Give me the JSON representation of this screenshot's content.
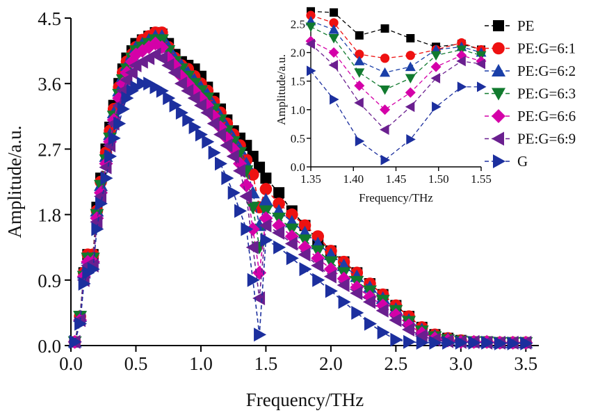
{
  "chart_data": [
    {
      "type": "line",
      "xlabel": "Frequency/THz",
      "ylabel": "Amplitude/a.u.",
      "xlim": [
        0.0,
        3.6
      ],
      "ylim": [
        0.0,
        4.5
      ],
      "xticks": [
        "0.0",
        "0.5",
        "1.0",
        "1.5",
        "2.0",
        "2.5",
        "3.0",
        "3.5"
      ],
      "yticks": [
        "0.0",
        "0.9",
        "1.8",
        "2.7",
        "3.6",
        "4.5"
      ],
      "grid": false,
      "legend": "top-right",
      "series": [
        {
          "name": "PE",
          "color": "#000000",
          "marker": "square",
          "x": [
            0.03,
            0.07,
            0.1,
            0.13,
            0.17,
            0.2,
            0.23,
            0.27,
            0.3,
            0.33,
            0.37,
            0.4,
            0.43,
            0.47,
            0.5,
            0.55,
            0.6,
            0.65,
            0.7,
            0.75,
            0.8,
            0.85,
            0.9,
            0.95,
            1.0,
            1.05,
            1.1,
            1.15,
            1.2,
            1.25,
            1.3,
            1.35,
            1.4,
            1.45,
            1.5,
            1.6,
            1.7,
            1.8,
            1.9,
            2.0,
            2.1,
            2.2,
            2.3,
            2.4,
            2.5,
            2.6,
            2.7,
            2.8,
            2.9,
            3.0,
            3.1,
            3.2,
            3.3,
            3.4,
            3.5
          ],
          "y": [
            0.05,
            0.4,
            1.0,
            1.25,
            1.25,
            1.9,
            2.3,
            2.7,
            3.0,
            3.3,
            3.6,
            3.8,
            3.95,
            4.05,
            4.15,
            4.2,
            4.25,
            4.3,
            4.28,
            4.15,
            4.0,
            3.9,
            3.85,
            3.8,
            3.7,
            3.55,
            3.4,
            3.25,
            3.1,
            2.95,
            2.85,
            2.75,
            2.6,
            2.45,
            2.3,
            2.1,
            1.85,
            1.65,
            1.45,
            1.3,
            1.15,
            1.0,
            0.85,
            0.7,
            0.55,
            0.4,
            0.25,
            0.15,
            0.1,
            0.07,
            0.05,
            0.05,
            0.04,
            0.04,
            0.04
          ]
        },
        {
          "name": "PE:G=6:1",
          "color": "#ee1111",
          "marker": "circle",
          "x": [
            0.03,
            0.07,
            0.1,
            0.13,
            0.17,
            0.2,
            0.23,
            0.27,
            0.3,
            0.33,
            0.37,
            0.4,
            0.43,
            0.47,
            0.5,
            0.55,
            0.6,
            0.65,
            0.7,
            0.75,
            0.8,
            0.85,
            0.9,
            0.95,
            1.0,
            1.05,
            1.1,
            1.15,
            1.2,
            1.25,
            1.3,
            1.35,
            1.4,
            1.45,
            1.5,
            1.6,
            1.7,
            1.8,
            1.9,
            2.0,
            2.1,
            2.2,
            2.3,
            2.4,
            2.5,
            2.6,
            2.7,
            2.8,
            2.9,
            3.0,
            3.1,
            3.2,
            3.3,
            3.4,
            3.5
          ],
          "y": [
            0.05,
            0.4,
            1.0,
            1.25,
            1.25,
            1.85,
            2.25,
            2.65,
            2.95,
            3.25,
            3.55,
            3.75,
            3.9,
            4.0,
            4.1,
            4.2,
            4.25,
            4.3,
            4.3,
            4.1,
            3.95,
            3.85,
            3.8,
            3.7,
            3.6,
            3.5,
            3.35,
            3.2,
            3.05,
            2.9,
            2.75,
            2.55,
            2.35,
            1.9,
            2.15,
            1.95,
            1.8,
            1.65,
            1.5,
            1.3,
            1.15,
            1.0,
            0.85,
            0.7,
            0.55,
            0.4,
            0.25,
            0.15,
            0.1,
            0.07,
            0.05,
            0.05,
            0.04,
            0.04,
            0.04
          ]
        },
        {
          "name": "PE:G=6:2",
          "color": "#1a3fa8",
          "marker": "triangle-up",
          "x": [
            0.03,
            0.07,
            0.1,
            0.13,
            0.17,
            0.2,
            0.23,
            0.27,
            0.3,
            0.33,
            0.37,
            0.4,
            0.43,
            0.47,
            0.5,
            0.55,
            0.6,
            0.65,
            0.7,
            0.75,
            0.8,
            0.85,
            0.9,
            0.95,
            1.0,
            1.05,
            1.1,
            1.15,
            1.2,
            1.25,
            1.3,
            1.35,
            1.4,
            1.45,
            1.5,
            1.6,
            1.7,
            1.8,
            1.9,
            2.0,
            2.1,
            2.2,
            2.3,
            2.4,
            2.5,
            2.6,
            2.7,
            2.8,
            2.9,
            3.0,
            3.1,
            3.2,
            3.3,
            3.4,
            3.5
          ],
          "y": [
            0.05,
            0.4,
            1.0,
            1.2,
            1.2,
            1.85,
            2.2,
            2.6,
            2.9,
            3.2,
            3.5,
            3.7,
            3.85,
            4.0,
            4.1,
            4.15,
            4.2,
            4.25,
            4.25,
            4.1,
            3.95,
            3.85,
            3.75,
            3.65,
            3.55,
            3.45,
            3.3,
            3.15,
            3.0,
            2.85,
            2.7,
            2.5,
            2.1,
            1.65,
            2.0,
            1.85,
            1.7,
            1.55,
            1.4,
            1.25,
            1.1,
            0.95,
            0.8,
            0.65,
            0.5,
            0.35,
            0.22,
            0.13,
            0.09,
            0.06,
            0.05,
            0.05,
            0.04,
            0.04,
            0.04
          ]
        },
        {
          "name": "PE:G=6:3",
          "color": "#117a2e",
          "marker": "triangle-down",
          "x": [
            0.03,
            0.07,
            0.1,
            0.13,
            0.17,
            0.2,
            0.23,
            0.27,
            0.3,
            0.33,
            0.37,
            0.4,
            0.43,
            0.47,
            0.5,
            0.55,
            0.6,
            0.65,
            0.7,
            0.75,
            0.8,
            0.85,
            0.9,
            0.95,
            1.0,
            1.05,
            1.1,
            1.15,
            1.2,
            1.25,
            1.3,
            1.35,
            1.4,
            1.45,
            1.5,
            1.6,
            1.7,
            1.8,
            1.9,
            2.0,
            2.1,
            2.2,
            2.3,
            2.4,
            2.5,
            2.6,
            2.7,
            2.8,
            2.9,
            3.0,
            3.1,
            3.2,
            3.3,
            3.4,
            3.5
          ],
          "y": [
            0.05,
            0.4,
            0.95,
            1.2,
            1.2,
            1.8,
            2.2,
            2.55,
            2.85,
            3.15,
            3.45,
            3.65,
            3.8,
            3.95,
            4.05,
            4.1,
            4.15,
            4.2,
            4.2,
            4.05,
            3.9,
            3.8,
            3.7,
            3.6,
            3.5,
            3.4,
            3.25,
            3.1,
            2.95,
            2.8,
            2.65,
            2.4,
            1.9,
            1.35,
            1.85,
            1.75,
            1.6,
            1.45,
            1.3,
            1.15,
            1.0,
            0.88,
            0.75,
            0.62,
            0.48,
            0.33,
            0.2,
            0.12,
            0.08,
            0.06,
            0.05,
            0.05,
            0.04,
            0.04,
            0.04
          ]
        },
        {
          "name": "PE:G=6:6",
          "color": "#d400a8",
          "marker": "diamond",
          "x": [
            0.03,
            0.07,
            0.1,
            0.13,
            0.17,
            0.2,
            0.23,
            0.27,
            0.3,
            0.33,
            0.37,
            0.4,
            0.43,
            0.47,
            0.5,
            0.55,
            0.6,
            0.65,
            0.7,
            0.75,
            0.8,
            0.85,
            0.9,
            0.95,
            1.0,
            1.05,
            1.1,
            1.15,
            1.2,
            1.25,
            1.3,
            1.35,
            1.4,
            1.45,
            1.5,
            1.6,
            1.7,
            1.8,
            1.9,
            2.0,
            2.1,
            2.2,
            2.3,
            2.4,
            2.5,
            2.6,
            2.7,
            2.8,
            2.9,
            3.0,
            3.1,
            3.2,
            3.3,
            3.4,
            3.5
          ],
          "y": [
            0.05,
            0.35,
            0.95,
            1.15,
            1.15,
            1.75,
            2.1,
            2.5,
            2.8,
            3.1,
            3.4,
            3.6,
            3.75,
            3.9,
            4.0,
            4.05,
            4.1,
            4.15,
            4.1,
            3.95,
            3.85,
            3.7,
            3.6,
            3.5,
            3.4,
            3.3,
            3.15,
            3.0,
            2.85,
            2.7,
            2.5,
            2.2,
            1.6,
            1.0,
            1.75,
            1.65,
            1.5,
            1.35,
            1.2,
            1.05,
            0.92,
            0.8,
            0.67,
            0.55,
            0.42,
            0.28,
            0.17,
            0.1,
            0.07,
            0.05,
            0.05,
            0.05,
            0.04,
            0.04,
            0.04
          ]
        },
        {
          "name": "PE:G=6:9",
          "color": "#6a1f8f",
          "marker": "triangle-left",
          "x": [
            0.03,
            0.07,
            0.1,
            0.13,
            0.17,
            0.2,
            0.23,
            0.27,
            0.3,
            0.33,
            0.37,
            0.4,
            0.43,
            0.47,
            0.5,
            0.55,
            0.6,
            0.65,
            0.7,
            0.75,
            0.8,
            0.85,
            0.9,
            0.95,
            1.0,
            1.05,
            1.1,
            1.15,
            1.2,
            1.25,
            1.3,
            1.35,
            1.4,
            1.45,
            1.5,
            1.6,
            1.7,
            1.8,
            1.9,
            2.0,
            2.1,
            2.2,
            2.3,
            2.4,
            2.5,
            2.6,
            2.7,
            2.8,
            2.9,
            3.0,
            3.1,
            3.2,
            3.3,
            3.4,
            3.5
          ],
          "y": [
            0.05,
            0.35,
            0.9,
            1.1,
            1.1,
            1.7,
            2.05,
            2.45,
            2.75,
            3.05,
            3.3,
            3.5,
            3.65,
            3.75,
            3.85,
            3.9,
            3.95,
            4.0,
            3.95,
            3.85,
            3.75,
            3.6,
            3.5,
            3.4,
            3.3,
            3.2,
            3.05,
            2.9,
            2.75,
            2.6,
            2.4,
            2.05,
            1.35,
            0.65,
            1.65,
            1.55,
            1.4,
            1.25,
            1.1,
            0.95,
            0.83,
            0.72,
            0.6,
            0.48,
            0.35,
            0.22,
            0.13,
            0.08,
            0.06,
            0.05,
            0.05,
            0.04,
            0.04,
            0.04,
            0.04
          ]
        },
        {
          "name": "G",
          "color": "#1c2f9e",
          "marker": "triangle-right",
          "x": [
            0.03,
            0.07,
            0.1,
            0.13,
            0.17,
            0.2,
            0.23,
            0.27,
            0.3,
            0.33,
            0.37,
            0.4,
            0.43,
            0.47,
            0.5,
            0.55,
            0.6,
            0.65,
            0.7,
            0.75,
            0.8,
            0.85,
            0.9,
            0.95,
            1.0,
            1.05,
            1.1,
            1.15,
            1.2,
            1.25,
            1.3,
            1.35,
            1.4,
            1.45,
            1.5,
            1.6,
            1.7,
            1.8,
            1.9,
            2.0,
            2.1,
            2.2,
            2.3,
            2.4,
            2.5,
            2.6,
            2.7,
            2.8,
            2.9,
            3.0,
            3.1,
            3.2,
            3.3,
            3.4,
            3.5
          ],
          "y": [
            0.05,
            0.3,
            0.85,
            1.0,
            1.05,
            1.6,
            1.95,
            2.3,
            2.6,
            2.85,
            3.05,
            3.25,
            3.4,
            3.5,
            3.55,
            3.6,
            3.6,
            3.55,
            3.5,
            3.4,
            3.3,
            3.2,
            3.1,
            3.0,
            2.9,
            2.8,
            2.65,
            2.5,
            2.3,
            2.1,
            1.85,
            1.6,
            0.9,
            0.15,
            1.45,
            1.35,
            1.2,
            1.05,
            0.9,
            0.75,
            0.6,
            0.45,
            0.3,
            0.18,
            0.08,
            0.05,
            0.04,
            0.04,
            0.04,
            0.04,
            0.04,
            0.04,
            0.03,
            0.03,
            0.03
          ]
        }
      ]
    },
    {
      "type": "line",
      "xlabel": "Frequency/THz",
      "ylabel": "Amplitude/a.u.",
      "xlim": [
        1.35,
        1.55
      ],
      "ylim": [
        0.0,
        2.7
      ],
      "xticks": [
        "1.35",
        "1.40",
        "1.45",
        "1.50",
        "1.55"
      ],
      "yticks": [
        "0.0",
        "0.5",
        "1.0",
        "1.5",
        "2.0",
        "2.5"
      ],
      "grid": false,
      "series": [
        {
          "name": "PE",
          "color": "#000000",
          "marker": "square",
          "x": [
            1.35,
            1.377,
            1.407,
            1.437,
            1.467,
            1.497,
            1.527,
            1.55
          ],
          "y": [
            2.72,
            2.7,
            2.3,
            2.42,
            2.25,
            2.1,
            2.15,
            2.05
          ]
        },
        {
          "name": "PE:G=6:1",
          "color": "#ee1111",
          "marker": "circle",
          "x": [
            1.35,
            1.377,
            1.407,
            1.437,
            1.467,
            1.497,
            1.527,
            1.55
          ],
          "y": [
            2.65,
            2.52,
            1.97,
            1.9,
            1.95,
            2.05,
            2.17,
            2.05
          ]
        },
        {
          "name": "PE:G=6:2",
          "color": "#1a3fa8",
          "marker": "triangle-up",
          "x": [
            1.35,
            1.377,
            1.407,
            1.437,
            1.467,
            1.497,
            1.527,
            1.55
          ],
          "y": [
            2.55,
            2.4,
            1.85,
            1.65,
            1.75,
            2.05,
            2.1,
            2.0
          ]
        },
        {
          "name": "PE:G=6:3",
          "color": "#117a2e",
          "marker": "triangle-down",
          "x": [
            1.35,
            1.377,
            1.407,
            1.437,
            1.467,
            1.497,
            1.527,
            1.55
          ],
          "y": [
            2.45,
            2.25,
            1.65,
            1.35,
            1.55,
            1.95,
            2.05,
            1.95
          ]
        },
        {
          "name": "PE:G=6:6",
          "color": "#d400a8",
          "marker": "diamond",
          "x": [
            1.35,
            1.377,
            1.407,
            1.437,
            1.467,
            1.497,
            1.527,
            1.55
          ],
          "y": [
            2.2,
            2.0,
            1.42,
            1.0,
            1.3,
            1.75,
            1.95,
            1.85
          ]
        },
        {
          "name": "PE:G=6:9",
          "color": "#6a1f8f",
          "marker": "triangle-left",
          "x": [
            1.35,
            1.377,
            1.407,
            1.437,
            1.467,
            1.497,
            1.527,
            1.55
          ],
          "y": [
            2.15,
            1.78,
            1.12,
            0.65,
            1.05,
            1.55,
            1.85,
            1.8
          ]
        },
        {
          "name": "G",
          "color": "#1c2f9e",
          "marker": "triangle-right",
          "x": [
            1.35,
            1.377,
            1.407,
            1.437,
            1.467,
            1.497,
            1.527,
            1.55
          ],
          "y": [
            1.68,
            1.18,
            0.45,
            0.12,
            0.48,
            1.05,
            1.4,
            1.4
          ]
        }
      ]
    }
  ],
  "legend_items": [
    {
      "label": "PE",
      "color": "#000000",
      "marker": "square"
    },
    {
      "label": "PE:G=6:1",
      "color": "#ee1111",
      "marker": "circle"
    },
    {
      "label": "PE:G=6:2",
      "color": "#1a3fa8",
      "marker": "triangle-up"
    },
    {
      "label": "PE:G=6:3",
      "color": "#117a2e",
      "marker": "triangle-down"
    },
    {
      "label": "PE:G=6:6",
      "color": "#d400a8",
      "marker": "diamond"
    },
    {
      "label": "PE:G=6:9",
      "color": "#6a1f8f",
      "marker": "triangle-left"
    },
    {
      "label": "G",
      "color": "#1c2f9e",
      "marker": "triangle-right"
    }
  ]
}
